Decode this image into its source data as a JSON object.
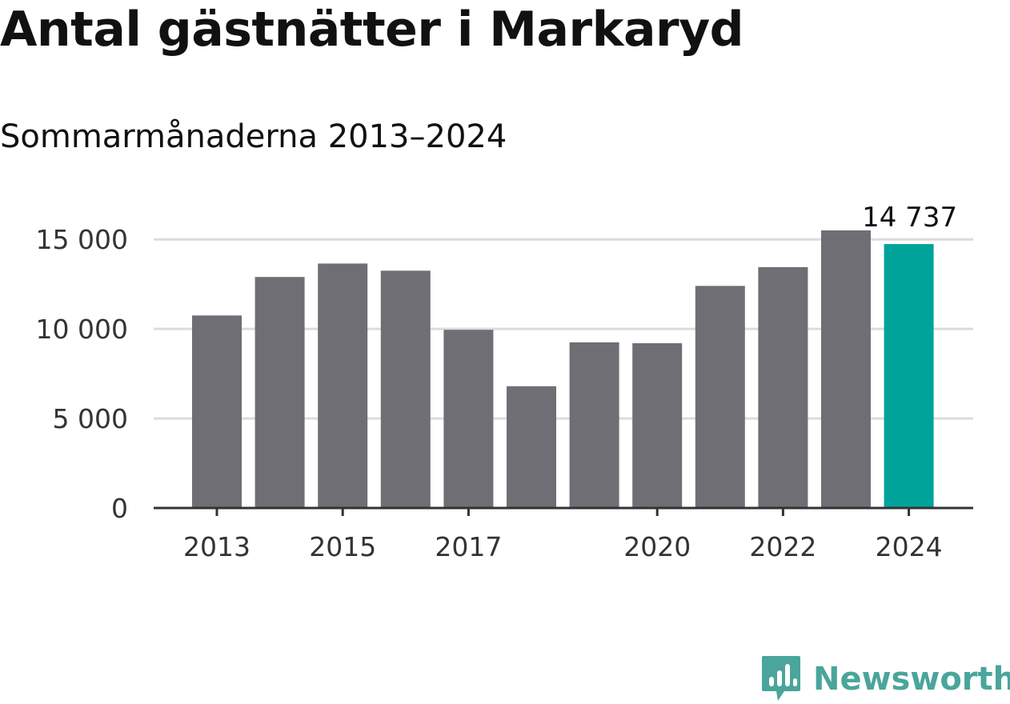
{
  "header": {
    "title": "Antal gästnätter i Markaryd",
    "subtitle": "Sommarmånaderna 2013–2024"
  },
  "chart_data": {
    "type": "bar",
    "categories": [
      "2013",
      "2014",
      "2015",
      "2016",
      "2017",
      "2018",
      "2019",
      "2020",
      "2021",
      "2022",
      "2023",
      "2024"
    ],
    "values": [
      10750,
      12900,
      13650,
      13250,
      9950,
      6800,
      9250,
      9200,
      12400,
      13450,
      15500,
      14737
    ],
    "x_tick_labels": [
      "2013",
      "2015",
      "2017",
      "2020",
      "2022",
      "2024"
    ],
    "y_ticks": [
      0,
      5000,
      10000,
      15000
    ],
    "y_tick_labels": [
      "0",
      "5 000",
      "10 000",
      "15 000"
    ],
    "ylim": [
      0,
      15500
    ],
    "highlight": {
      "category": "2024",
      "label": "14 737"
    },
    "colors": {
      "bar": "#6f6e74",
      "highlight": "#00a39a",
      "grid": "#dcdcdc",
      "axis": "#333333"
    },
    "grid": true,
    "legend": "none"
  },
  "brand": {
    "name": "Newsworthy",
    "color": "#4aa59b",
    "icon": "bar-chart-speech-bubble-icon"
  }
}
